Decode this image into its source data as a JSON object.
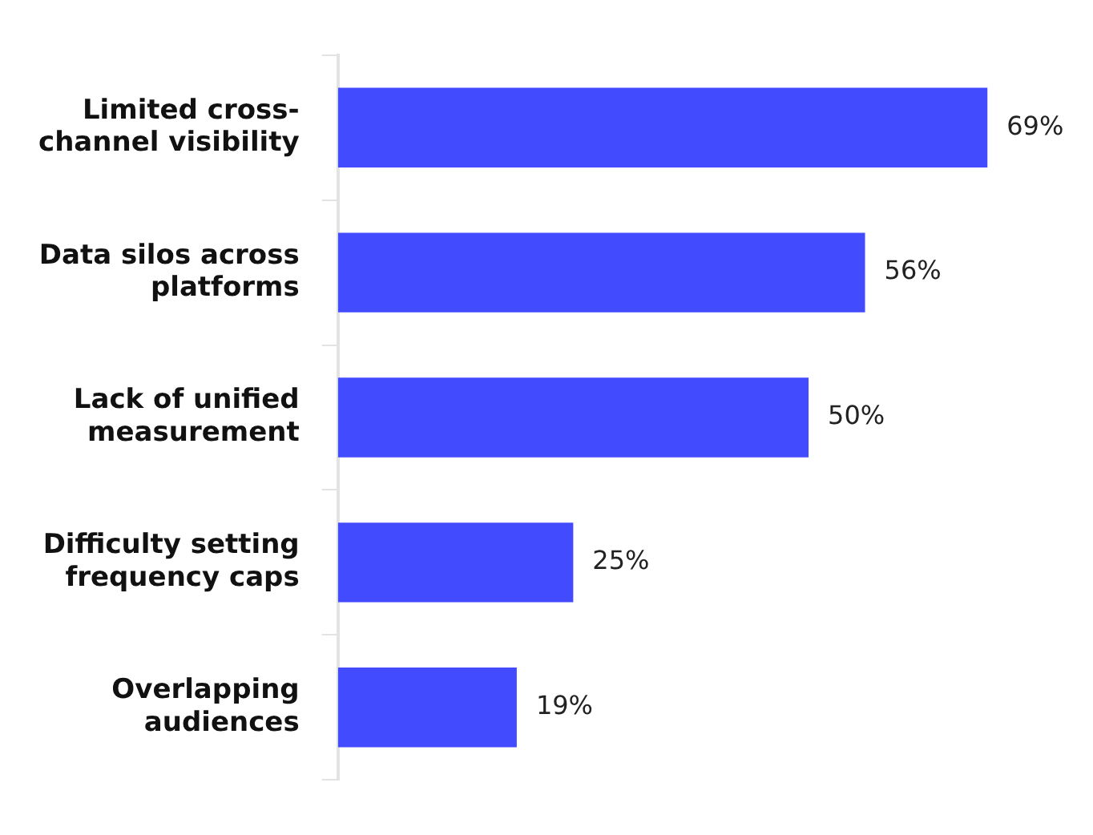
{
  "chart_data": {
    "type": "bar",
    "orientation": "horizontal",
    "categories": [
      "Limited cross-channel visibility",
      "Data silos across platforms",
      "Lack of unified measurement",
      "Difficulty setting frequency caps",
      "Overlapping audiences"
    ],
    "values": [
      69,
      56,
      50,
      25,
      19
    ],
    "value_labels": [
      "69%",
      "56%",
      "50%",
      "25%",
      "19%"
    ],
    "color": "#434bff",
    "grid": false,
    "legend": false
  }
}
